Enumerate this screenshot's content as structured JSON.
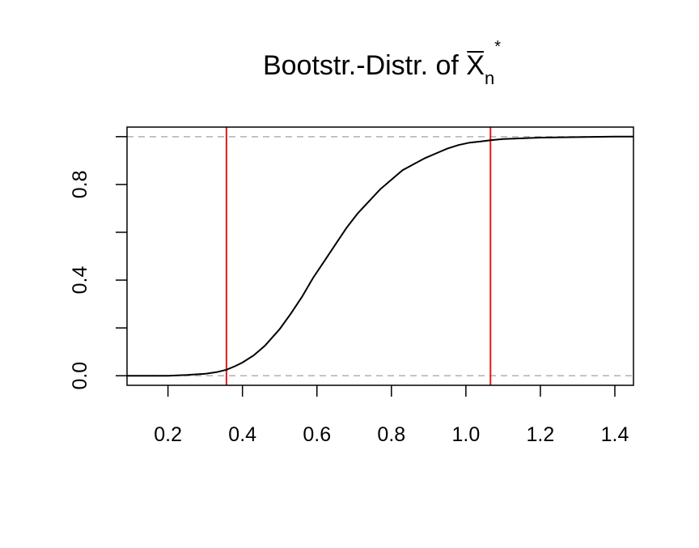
{
  "chart_data": {
    "type": "line",
    "title": {
      "prefix": "Bootstr.-Distr. of ",
      "symbol": "X",
      "subscript": "n",
      "superscript": "*"
    },
    "xlabel": "",
    "ylabel": "",
    "xlim": [
      0.09,
      1.45
    ],
    "ylim": [
      -0.04,
      1.04
    ],
    "x_ticks": [
      0.2,
      0.4,
      0.6,
      0.8,
      1.0,
      1.2,
      1.4
    ],
    "x_tick_labels": [
      "0.2",
      "0.4",
      "0.6",
      "0.8",
      "1.0",
      "1.2",
      "1.4"
    ],
    "y_ticks": [
      0.0,
      0.2,
      0.4,
      0.6,
      0.8,
      1.0
    ],
    "y_tick_labels": [
      "0.0",
      "",
      "0.4",
      "",
      "0.8",
      ""
    ],
    "reference_lines_h": [
      0.0,
      1.0
    ],
    "reference_lines_v": [
      0.357,
      1.066
    ],
    "series": [
      {
        "x": [
          0.09,
          0.2,
          0.25,
          0.3,
          0.33,
          0.357,
          0.38,
          0.4,
          0.43,
          0.46,
          0.5,
          0.53,
          0.56,
          0.59,
          0.62,
          0.65,
          0.68,
          0.71,
          0.74,
          0.77,
          0.8,
          0.83,
          0.86,
          0.89,
          0.92,
          0.95,
          0.98,
          1.01,
          1.04,
          1.066,
          1.1,
          1.15,
          1.2,
          1.3,
          1.4,
          1.45
        ],
        "y": [
          0.0,
          0.0,
          0.003,
          0.008,
          0.015,
          0.025,
          0.04,
          0.055,
          0.085,
          0.125,
          0.195,
          0.26,
          0.33,
          0.41,
          0.48,
          0.55,
          0.62,
          0.68,
          0.73,
          0.78,
          0.82,
          0.86,
          0.885,
          0.91,
          0.93,
          0.95,
          0.965,
          0.975,
          0.98,
          0.985,
          0.99,
          0.993,
          0.996,
          0.998,
          1.0,
          1.0
        ]
      }
    ],
    "colors": {
      "curve": "#000000",
      "vlines": "#e31a1c",
      "hlines": "#b0b0b0",
      "axes": "#000000"
    },
    "grid": false
  }
}
